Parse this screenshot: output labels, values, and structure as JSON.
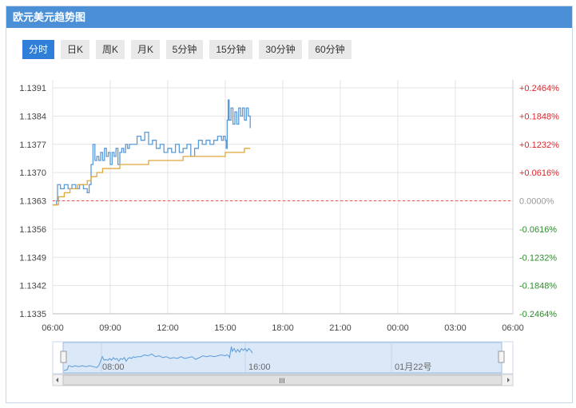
{
  "header": {
    "title": "欧元美元趋势图"
  },
  "tabs": [
    {
      "label": "分时",
      "active": true
    },
    {
      "label": "日K",
      "active": false
    },
    {
      "label": "周K",
      "active": false
    },
    {
      "label": "月K",
      "active": false
    },
    {
      "label": "5分钟",
      "active": false
    },
    {
      "label": "15分钟",
      "active": false
    },
    {
      "label": "30分钟",
      "active": false
    },
    {
      "label": "60分钟",
      "active": false
    }
  ],
  "chart_data": {
    "type": "line",
    "baseline": 1.1363,
    "ylim": [
      1.1335,
      1.1391
    ],
    "y_ticks": [
      "1.1391",
      "1.1384",
      "1.1377",
      "1.1370",
      "1.1363",
      "1.1356",
      "1.1349",
      "1.1342",
      "1.1335"
    ],
    "pct_ticks": [
      "+0.2464%",
      "+0.1848%",
      "+0.1232%",
      "+0.0616%",
      "0.0000%",
      "-0.0616%",
      "-0.1232%",
      "-0.1848%",
      "-0.2464%"
    ],
    "x_ticks": [
      "06:00",
      "09:00",
      "12:00",
      "15:00",
      "18:00",
      "21:00",
      "00:00",
      "03:00",
      "06:00"
    ],
    "x_range_hours": [
      6,
      30
    ],
    "series": [
      {
        "color": "#5b9ad8",
        "x": [
          6.0,
          6.1,
          6.2,
          6.25,
          6.3,
          6.4,
          6.5,
          6.6,
          6.8,
          7.0,
          7.2,
          7.4,
          7.6,
          7.8,
          7.9,
          8.0,
          8.1,
          8.2,
          8.3,
          8.4,
          8.5,
          8.6,
          8.7,
          8.8,
          8.9,
          9.0,
          9.1,
          9.2,
          9.3,
          9.4,
          9.5,
          9.6,
          9.7,
          9.8,
          9.9,
          10.0,
          10.2,
          10.4,
          10.6,
          10.8,
          11.0,
          11.2,
          11.4,
          11.6,
          11.8,
          12.0,
          12.2,
          12.4,
          12.6,
          12.8,
          13.0,
          13.2,
          13.4,
          13.6,
          13.8,
          14.0,
          14.2,
          14.4,
          14.6,
          14.8,
          14.9,
          15.0,
          15.05,
          15.1,
          15.15,
          15.2,
          15.3,
          15.4,
          15.5,
          15.6,
          15.7,
          15.8,
          15.9,
          16.0,
          16.1,
          16.2,
          16.3
        ],
        "y": [
          1.1362,
          1.1362,
          1.1363,
          1.1367,
          1.1367,
          1.1366,
          1.1366,
          1.1367,
          1.1366,
          1.1367,
          1.1366,
          1.1367,
          1.1366,
          1.1365,
          1.1367,
          1.1372,
          1.1377,
          1.1373,
          1.1374,
          1.1373,
          1.1375,
          1.1373,
          1.1376,
          1.1374,
          1.1375,
          1.1372,
          1.1375,
          1.1374,
          1.1376,
          1.1372,
          1.1375,
          1.1376,
          1.1375,
          1.1377,
          1.1376,
          1.1377,
          1.1377,
          1.1379,
          1.1378,
          1.138,
          1.1377,
          1.1378,
          1.1376,
          1.1377,
          1.1375,
          1.1376,
          1.1375,
          1.1377,
          1.1375,
          1.1376,
          1.1377,
          1.1374,
          1.1376,
          1.1378,
          1.1377,
          1.1378,
          1.1377,
          1.1378,
          1.1379,
          1.1378,
          1.1379,
          1.1378,
          1.1376,
          1.1383,
          1.1388,
          1.1383,
          1.1386,
          1.1382,
          1.1385,
          1.1382,
          1.1386,
          1.1384,
          1.1386,
          1.1383,
          1.1386,
          1.1384,
          1.1381
        ]
      },
      {
        "color": "#e2a73a",
        "x": [
          6.0,
          6.3,
          6.6,
          6.9,
          7.3,
          7.8,
          8.0,
          8.3,
          8.6,
          9.0,
          9.5,
          10.0,
          10.5,
          11.0,
          11.6,
          12.2,
          12.8,
          13.4,
          14.0,
          14.6,
          15.0,
          15.5,
          16.0,
          16.3
        ],
        "y": [
          1.1362,
          1.1364,
          1.1365,
          1.1366,
          1.1367,
          1.1368,
          1.1369,
          1.137,
          1.1371,
          1.1371,
          1.1372,
          1.1372,
          1.1372,
          1.1373,
          1.1373,
          1.1373,
          1.1374,
          1.1374,
          1.1374,
          1.1374,
          1.1375,
          1.1375,
          1.1376,
          1.1376
        ]
      }
    ],
    "navigator": {
      "labels": [
        "08:00",
        "16:00",
        "01月22号"
      ],
      "scroll_label": "III"
    }
  }
}
